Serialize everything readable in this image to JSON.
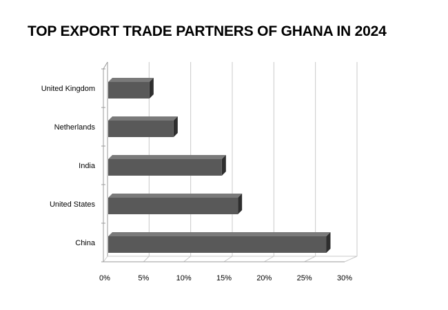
{
  "title": "TOP EXPORT TRADE PARTNERS OF GHANA IN 2024",
  "chart_data": {
    "type": "bar",
    "orientation": "horizontal",
    "title": "TOP EXPORT TRADE PARTNERS OF GHANA IN 2024",
    "categories": [
      "United Kingdom",
      "Netherlands",
      "India",
      "United States",
      "China"
    ],
    "values": [
      5.3,
      8.3,
      14.3,
      16.3,
      27.3
    ],
    "unit": "%",
    "xlim": [
      0,
      30
    ],
    "xticks": [
      "0%",
      "5%",
      "10%",
      "15%",
      "20%",
      "25%",
      "30%"
    ],
    "xlabel": "",
    "ylabel": "",
    "grid": true,
    "legend": "none",
    "bar_color": "#595959",
    "style": "3d"
  }
}
